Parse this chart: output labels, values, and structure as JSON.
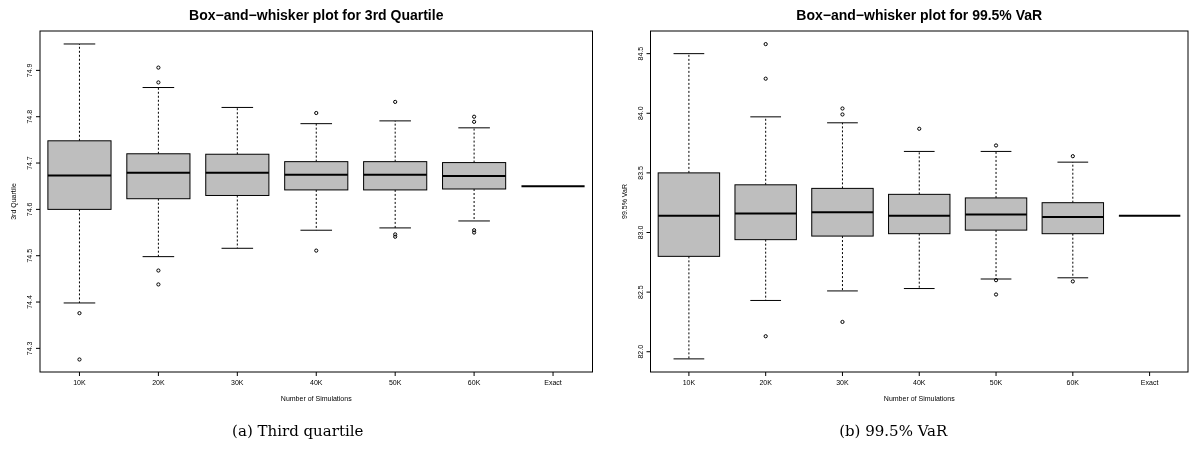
{
  "chart_data": [
    {
      "type": "box",
      "title": "Box−and−whisker plot for 3rd Quartile",
      "xlabel": "Number of Simulations",
      "ylabel": "3rd Quartile",
      "categories": [
        "10K",
        "20K",
        "30K",
        "40K",
        "50K",
        "60K",
        "Exact"
      ],
      "colors": [
        "#bebebe",
        "#bebebe",
        "#bebebe",
        "#bebebe",
        "#bebebe",
        "#bebebe",
        "#000000"
      ],
      "ylim": [
        74.249,
        74.985
      ],
      "yticks": [
        74.3,
        74.4,
        74.5,
        74.6,
        74.7,
        74.8,
        74.9
      ],
      "grid": false,
      "annotations": [
        "(a) Third quartile"
      ],
      "boxes": [
        {
          "low": 74.398,
          "q1": 74.6,
          "median": 74.673,
          "q3": 74.748,
          "high": 74.957,
          "outliers": [
            74.376,
            74.276
          ]
        },
        {
          "low": 74.498,
          "q1": 74.623,
          "median": 74.679,
          "q3": 74.72,
          "high": 74.863,
          "outliers": [
            74.906,
            74.874,
            74.468,
            74.438
          ]
        },
        {
          "low": 74.516,
          "q1": 74.63,
          "median": 74.679,
          "q3": 74.719,
          "high": 74.82
        },
        {
          "low": 74.555,
          "q1": 74.642,
          "median": 74.675,
          "q3": 74.703,
          "high": 74.785,
          "outliers": [
            74.808,
            74.511
          ]
        },
        {
          "low": 74.56,
          "q1": 74.642,
          "median": 74.675,
          "q3": 74.703,
          "high": 74.791,
          "outliers": [
            74.832,
            74.546,
            74.541
          ]
        },
        {
          "low": 74.575,
          "q1": 74.644,
          "median": 74.672,
          "q3": 74.701,
          "high": 74.776,
          "outliers": [
            74.8,
            74.789,
            74.555,
            74.55
          ]
        },
        {
          "low": 74.65,
          "q1": 74.65,
          "median": 74.65,
          "q3": 74.65,
          "high": 74.65
        }
      ]
    },
    {
      "type": "box",
      "title": "Box−and−whisker plot for 99.5% VaR",
      "xlabel": "Number of Simulations",
      "ylabel": "99.5% VaR",
      "categories": [
        "10K",
        "20K",
        "30K",
        "40K",
        "50K",
        "60K",
        "Exact"
      ],
      "colors": [
        "#bebebe",
        "#bebebe",
        "#bebebe",
        "#bebebe",
        "#bebebe",
        "#bebebe",
        "#000000"
      ],
      "ylim": [
        81.83,
        84.69
      ],
      "yticks": [
        {
          "value": 82,
          "label": "82.0"
        },
        82.5,
        {
          "value": 83,
          "label": "83.0"
        },
        83.5,
        {
          "value": 84,
          "label": "84.0"
        },
        84.5
      ],
      "grid": false,
      "annotations": [
        "(b) 99.5% VaR"
      ],
      "boxes": [
        {
          "low": 81.94,
          "q1": 82.8,
          "median": 83.14,
          "q3": 83.5,
          "high": 84.5
        },
        {
          "low": 82.43,
          "q1": 82.94,
          "median": 83.16,
          "q3": 83.4,
          "high": 83.97,
          "outliers": [
            84.58,
            84.29,
            82.13
          ]
        },
        {
          "low": 82.51,
          "q1": 82.97,
          "median": 83.17,
          "q3": 83.37,
          "high": 83.92,
          "outliers": [
            84.04,
            83.99,
            82.25
          ]
        },
        {
          "low": 82.53,
          "q1": 82.99,
          "median": 83.14,
          "q3": 83.32,
          "high": 83.68,
          "outliers": [
            83.87
          ]
        },
        {
          "low": 82.61,
          "q1": 83.02,
          "median": 83.15,
          "q3": 83.29,
          "high": 83.68,
          "outliers": [
            83.73,
            82.6,
            82.48
          ]
        },
        {
          "low": 82.62,
          "q1": 82.99,
          "median": 83.13,
          "q3": 83.25,
          "high": 83.59,
          "outliers": [
            83.64,
            82.59
          ]
        },
        {
          "low": 83.14,
          "q1": 83.14,
          "median": 83.14,
          "q3": 83.14,
          "high": 83.14
        }
      ]
    }
  ]
}
